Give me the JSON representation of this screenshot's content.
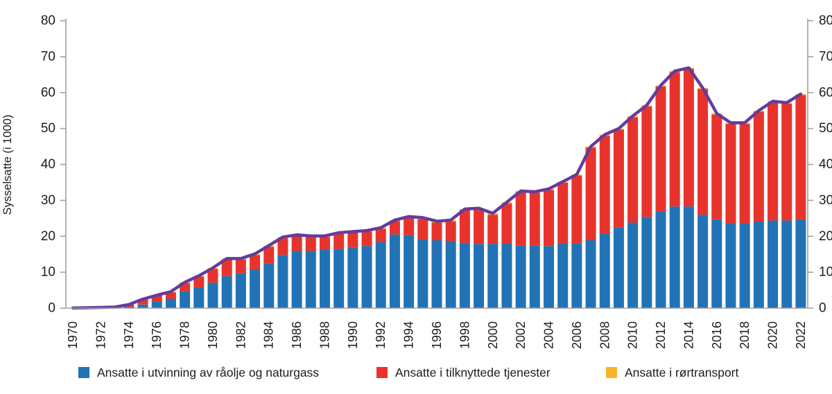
{
  "chart_data": {
    "type": "bar",
    "stacked": true,
    "title": "",
    "ylabel": "Sysselsatte (i 1000)",
    "xlabel": "",
    "ylim": [
      0,
      80
    ],
    "yticks": [
      0,
      10,
      20,
      30,
      40,
      50,
      60,
      70,
      80
    ],
    "grid": false,
    "legend_position": "bottom",
    "categories": [
      1970,
      1971,
      1972,
      1973,
      1974,
      1975,
      1976,
      1977,
      1978,
      1979,
      1980,
      1981,
      1982,
      1983,
      1984,
      1985,
      1986,
      1987,
      1988,
      1989,
      1990,
      1991,
      1992,
      1993,
      1994,
      1995,
      1996,
      1997,
      1998,
      1999,
      2000,
      2001,
      2002,
      2003,
      2004,
      2005,
      2006,
      2007,
      2008,
      2009,
      2010,
      2011,
      2012,
      2013,
      2014,
      2015,
      2016,
      2017,
      2018,
      2019,
      2020,
      2021,
      2022
    ],
    "xtick_labels": [
      "1970",
      "1972",
      "1974",
      "1976",
      "1978",
      "1980",
      "1982",
      "1984",
      "1986",
      "1988",
      "1990",
      "1992",
      "1994",
      "1996",
      "1998",
      "2000",
      "2002",
      "2004",
      "2006",
      "2008",
      "2010",
      "2012",
      "2014",
      "2016",
      "2018",
      "2020",
      "2022"
    ],
    "series": [
      {
        "name": "Ansatte i utvinning av råolje og naturgass",
        "color": "#2273B5",
        "values": [
          0.02,
          0.05,
          0.1,
          0.1,
          0.3,
          1.0,
          1.9,
          2.6,
          4.7,
          5.8,
          7.1,
          8.9,
          9.7,
          10.6,
          12.5,
          14.8,
          15.9,
          15.9,
          16.3,
          16.5,
          16.9,
          17.3,
          18.4,
          20.5,
          20.3,
          19.2,
          18.9,
          18.7,
          18.2,
          17.9,
          17.9,
          18.1,
          17.5,
          17.5,
          17.3,
          18.1,
          18.0,
          18.9,
          20.8,
          22.5,
          23.8,
          25.4,
          27.0,
          28.3,
          28.3,
          26.0,
          24.7,
          23.7,
          23.7,
          24.1,
          24.4,
          24.4,
          24.7
        ]
      },
      {
        "name": "Ansatte i tilknyttede tjenester",
        "color": "#E8332C",
        "values": [
          0.03,
          0.05,
          0.1,
          0.2,
          0.7,
          1.4,
          1.6,
          1.8,
          2.3,
          3.0,
          3.8,
          4.6,
          3.8,
          4.2,
          4.6,
          4.7,
          4.2,
          3.9,
          3.5,
          4.2,
          4.1,
          4.0,
          3.7,
          3.7,
          4.8,
          5.6,
          4.9,
          5.4,
          9.1,
          9.6,
          8.1,
          11.0,
          14.8,
          14.6,
          15.6,
          16.8,
          18.9,
          25.8,
          27.2,
          27.2,
          29.3,
          30.7,
          34.7,
          37.4,
          38.3,
          35.0,
          29.2,
          27.6,
          27.6,
          30.6,
          32.9,
          32.5,
          34.6
        ]
      },
      {
        "name": "Ansatte i rørtransport",
        "color": "#FBB32B",
        "values": [
          0,
          0,
          0,
          0,
          0,
          0.1,
          0.1,
          0.2,
          0.2,
          0.2,
          0.3,
          0.3,
          0.3,
          0.3,
          0.3,
          0.3,
          0.3,
          0.3,
          0.3,
          0.3,
          0.3,
          0.3,
          0.3,
          0.3,
          0.4,
          0.4,
          0.4,
          0.4,
          0.3,
          0.3,
          0.4,
          0.4,
          0.3,
          0.3,
          0.3,
          0.3,
          0.3,
          0.3,
          0.3,
          0.3,
          0.4,
          0.4,
          0.3,
          0.3,
          0.3,
          0.3,
          0.3,
          0.3,
          0.3,
          0.3,
          0.3,
          0.3,
          0.3
        ]
      }
    ],
    "total_line": {
      "color": "#643C9B",
      "width": 4.5
    },
    "axis_color": "#A0A0A0",
    "text_color": "#1c1c1c"
  }
}
